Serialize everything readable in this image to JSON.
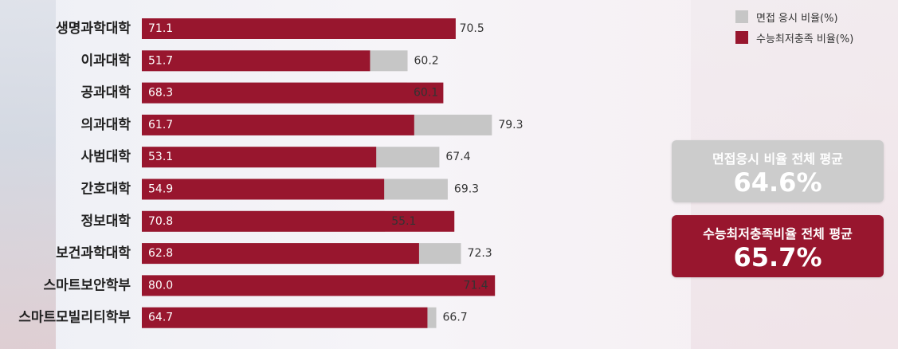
{
  "chart_data": {
    "type": "bar",
    "orientation": "horizontal",
    "categories": [
      "생명과학대학",
      "이과대학",
      "공과대학",
      "의과대학",
      "사범대학",
      "간호대학",
      "정보대학",
      "보건과학대학",
      "스마트보안학부",
      "스마트모빌리티학부"
    ],
    "series": [
      {
        "name": "면접 응시 비율(%)",
        "color": "#c6c6c6",
        "values": [
          70.5,
          60.2,
          60.1,
          79.3,
          67.4,
          69.3,
          55.1,
          72.3,
          71.4,
          66.7
        ]
      },
      {
        "name": "수능최저충족 비율(%)",
        "color": "#98162e",
        "values": [
          71.1,
          51.7,
          68.3,
          61.7,
          53.1,
          54.9,
          70.8,
          62.8,
          80.0,
          64.7
        ]
      }
    ],
    "value_labels_gray": [
      "70.5",
      "60.2",
      "60.1",
      "79.3",
      "67.4",
      "69.3",
      "55.1",
      "72.3",
      "71.4",
      "66.7"
    ],
    "value_labels_red": [
      "71.1",
      "51.7",
      "68.3",
      "61.7",
      "53.1",
      "54.9",
      "70.8",
      "62.8",
      "80.0",
      "64.7"
    ],
    "legend_position": "top-right",
    "grid": false
  },
  "summary": {
    "interview": {
      "title": "면접응시 비율 전체 평균",
      "value": "64.6%"
    },
    "csat": {
      "title": "수능최저충족비율 전체 평균",
      "value": "65.7%"
    }
  },
  "colors": {
    "gray": "#c6c6c6",
    "red": "#98162e"
  }
}
